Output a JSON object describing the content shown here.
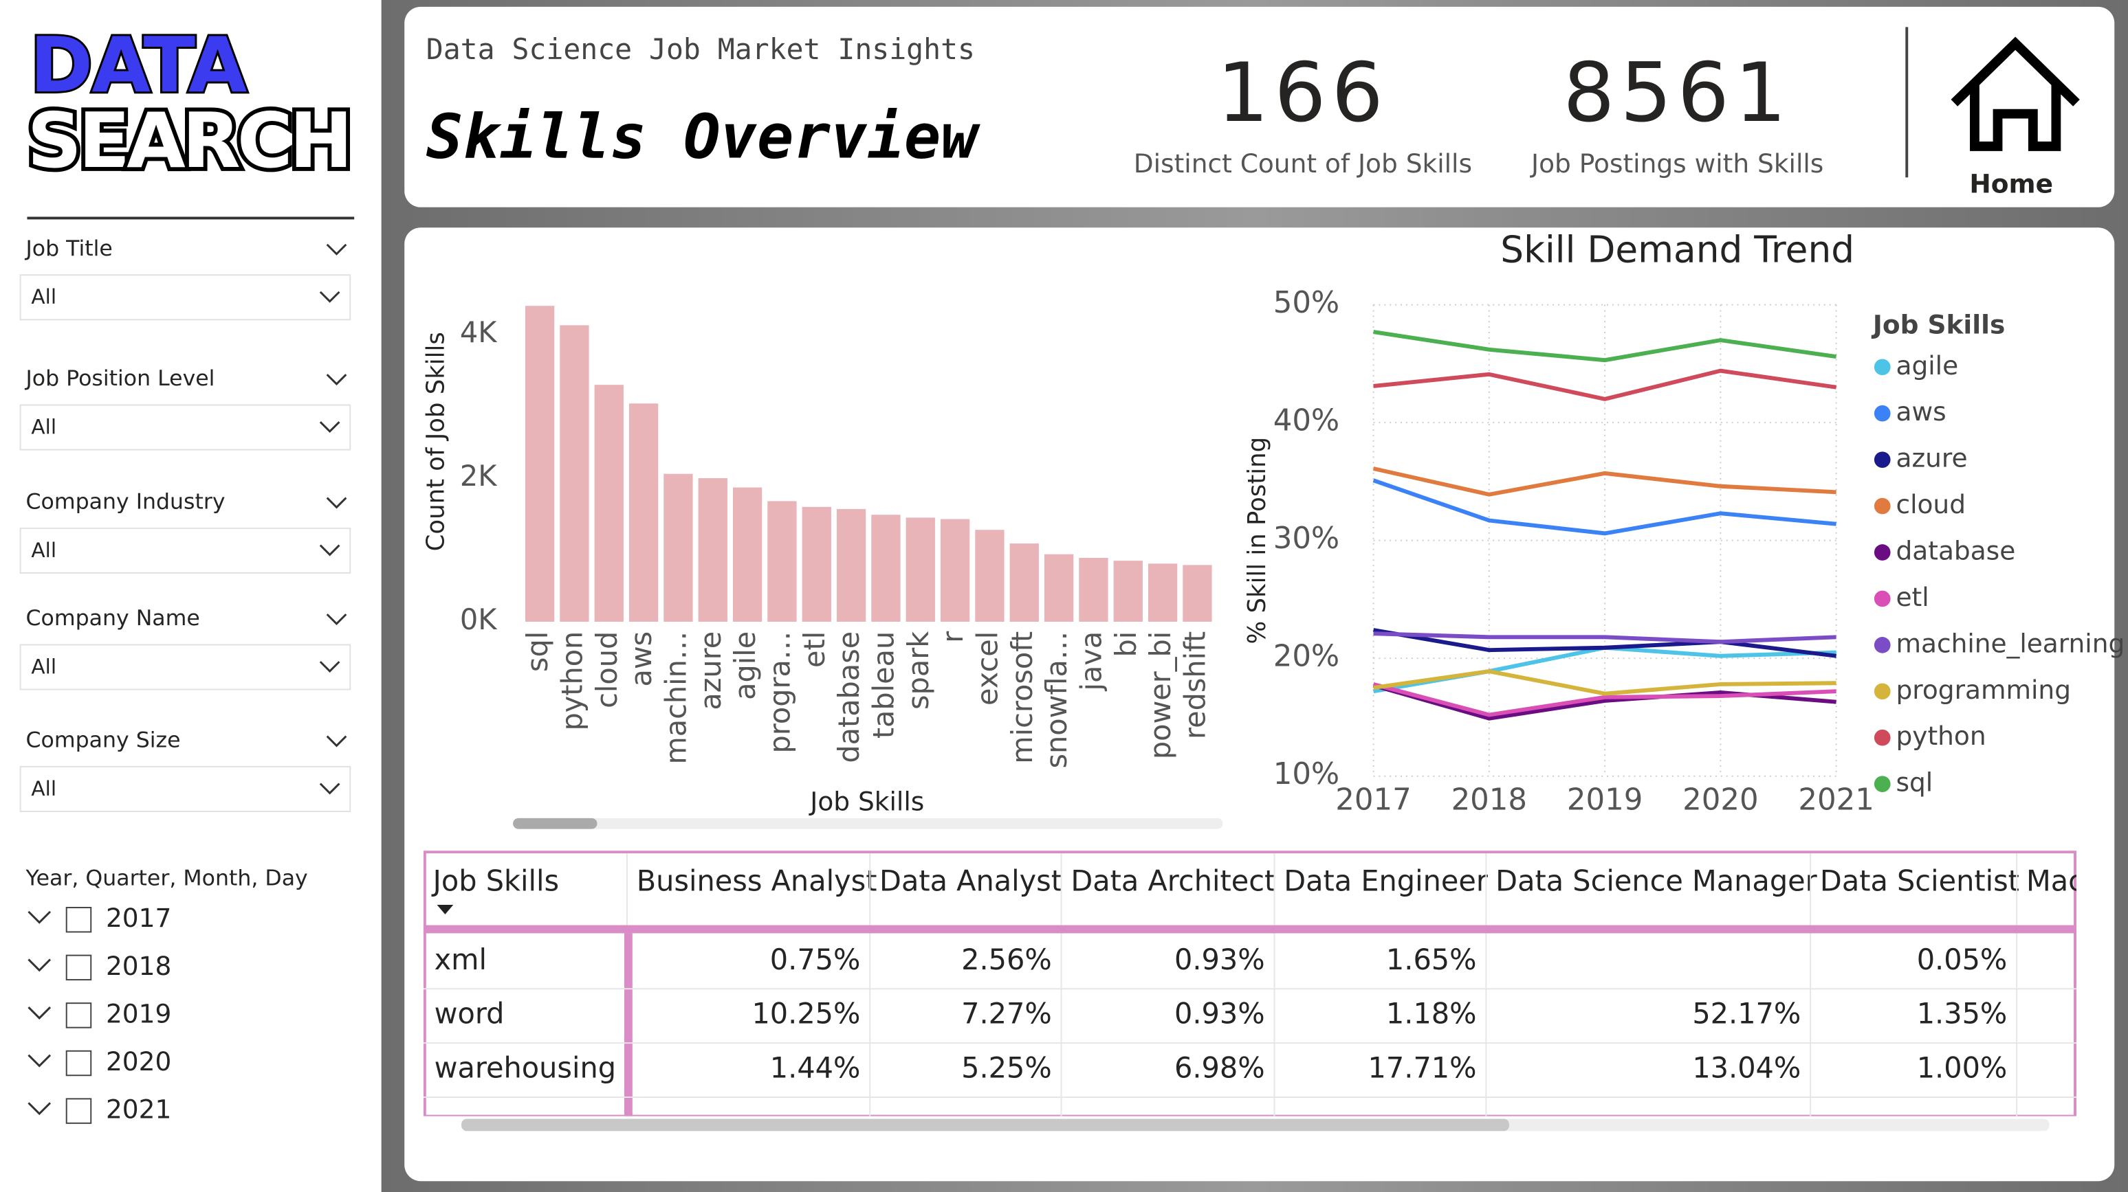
{
  "logo": [
    "DATA",
    "SEARCH"
  ],
  "filters": [
    {
      "label": "Job Title",
      "value": "All"
    },
    {
      "label": "Job Position Level",
      "value": "All"
    },
    {
      "label": "Company Industry",
      "value": "All"
    },
    {
      "label": "Company Name",
      "value": "All"
    },
    {
      "label": "Company Size",
      "value": "All"
    }
  ],
  "date_filter": {
    "label": "Year, Quarter, Month, Day",
    "options": [
      "2017",
      "2018",
      "2019",
      "2020",
      "2021"
    ]
  },
  "header": {
    "subtitle": "Data Science Job Market Insights",
    "title": "Skills Overview",
    "cards": [
      {
        "value": "166",
        "label": "Distinct Count of Job Skills"
      },
      {
        "value": "8561",
        "label": "Job Postings with Skills"
      }
    ],
    "home": "Home"
  },
  "chart_data": [
    {
      "type": "bar",
      "y_label": "Count of Job Skills",
      "x_label": "Job Skills",
      "color": "#e8b4b8",
      "categories": [
        "sql",
        "python",
        "cloud",
        "aws",
        "machin…",
        "azure",
        "agile",
        "progra…",
        "etl",
        "database",
        "tableau",
        "spark",
        "r",
        "excel",
        "microsoft",
        "snowfla…",
        "java",
        "bi",
        "power_bi",
        "redshift"
      ],
      "values": [
        4400,
        4130,
        3300,
        3040,
        2060,
        2000,
        1870,
        1680,
        1600,
        1570,
        1490,
        1450,
        1430,
        1280,
        1090,
        940,
        890,
        850,
        810,
        790
      ],
      "ylim": [
        0,
        4500
      ],
      "yticks": [
        {
          "value": 0,
          "label": "0K"
        },
        {
          "value": 2000,
          "label": "2K"
        },
        {
          "value": 4000,
          "label": "4K"
        }
      ]
    },
    {
      "type": "line",
      "title": "Skill Demand Trend",
      "y_label": "% Skill in Posting",
      "legend_title": "Job Skills",
      "legend": "right",
      "x": [
        2017,
        2018,
        2019,
        2020,
        2021
      ],
      "xlim": [
        2017,
        2021
      ],
      "xticks": [
        2017,
        2018,
        2019,
        2020,
        2021
      ],
      "ylim": [
        10,
        50
      ],
      "yticks": [
        {
          "value": 10,
          "label": "10%"
        },
        {
          "value": 20,
          "label": "20%"
        },
        {
          "value": 30,
          "label": "30%"
        },
        {
          "value": 40,
          "label": "40%"
        },
        {
          "value": 50,
          "label": "50%"
        }
      ],
      "grid": true,
      "series": [
        {
          "name": "agile",
          "color": "#4ec3e8",
          "values": [
            17.2,
            18.9,
            20.9,
            20.2,
            20.5
          ]
        },
        {
          "name": "aws",
          "color": "#3b82f6",
          "values": [
            35.1,
            31.7,
            30.6,
            32.3,
            31.4
          ]
        },
        {
          "name": "azure",
          "color": "#1a1a8c",
          "values": [
            22.4,
            20.7,
            20.9,
            21.4,
            20.2
          ]
        },
        {
          "name": "cloud",
          "color": "#e07a3f",
          "values": [
            36.1,
            33.9,
            35.7,
            34.6,
            34.1
          ]
        },
        {
          "name": "database",
          "color": "#6a0d83",
          "values": [
            17.7,
            14.9,
            16.4,
            17.1,
            16.3
          ]
        },
        {
          "name": "etl",
          "color": "#d94fb5",
          "values": [
            17.8,
            15.2,
            16.7,
            16.8,
            17.2
          ]
        },
        {
          "name": "machine_learning",
          "color": "#7a4cc6",
          "values": [
            22.1,
            21.8,
            21.8,
            21.4,
            21.8
          ]
        },
        {
          "name": "programming",
          "color": "#d4b43a",
          "values": [
            17.5,
            18.9,
            17.0,
            17.8,
            17.9
          ]
        },
        {
          "name": "python",
          "color": "#cf4a5a",
          "values": [
            43.1,
            44.1,
            42.0,
            44.4,
            43.0
          ]
        },
        {
          "name": "sql",
          "color": "#4caf50",
          "values": [
            47.7,
            46.2,
            45.3,
            47.0,
            45.6
          ]
        }
      ]
    }
  ],
  "table": {
    "columns": [
      "Job Skills",
      "Business Analyst",
      "Data Analyst",
      "Data Architect",
      "Data Engineer",
      "Data Science Manager",
      "Data Scientist",
      "Mac"
    ],
    "rows": [
      [
        "xml",
        "0.75%",
        "2.56%",
        "0.93%",
        "1.65%",
        null,
        "0.05%"
      ],
      [
        "word",
        "10.25%",
        "7.27%",
        "0.93%",
        "1.18%",
        "52.17%",
        "1.35%"
      ],
      [
        "warehousing",
        "1.44%",
        "5.25%",
        "6.98%",
        "17.71%",
        "13.04%",
        "1.00%"
      ]
    ]
  }
}
